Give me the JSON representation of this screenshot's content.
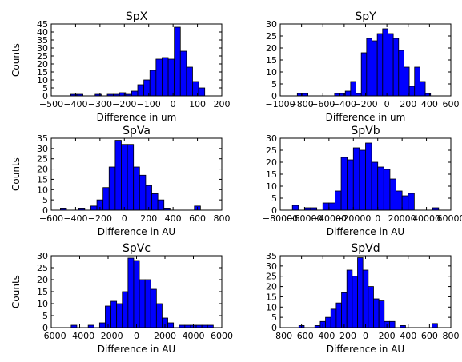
{
  "chart_data": [
    {
      "type": "bar",
      "title": "SpX",
      "xlabel": "Difference in um",
      "ylabel": "Counts",
      "xlim": [
        -500,
        200
      ],
      "ylim": [
        0,
        45
      ],
      "xticks": [
        -500,
        -400,
        -300,
        -200,
        -100,
        0,
        100,
        200
      ],
      "xtick_labels": [
        "−500",
        "−400",
        "−300",
        "−200",
        "−100",
        "0",
        "100",
        "200"
      ],
      "yticks": [
        0,
        5,
        10,
        15,
        20,
        25,
        30,
        35,
        40,
        45
      ],
      "ytick_labels": [
        "0",
        "5",
        "10",
        "15",
        "20",
        "25",
        "30",
        "35",
        "40",
        "45"
      ],
      "bin_edges": [
        -420,
        -395,
        -370,
        -345,
        -320,
        -295,
        -270,
        -245,
        -220,
        -195,
        -170,
        -145,
        -120,
        -95,
        -70,
        -45,
        -20,
        5,
        30,
        55,
        80,
        105,
        130,
        155,
        180
      ],
      "values": [
        1,
        1,
        0,
        0,
        1,
        0,
        1,
        1,
        2,
        1,
        3,
        7,
        10,
        16,
        23,
        24,
        23,
        43,
        28,
        18,
        9,
        5,
        0,
        0
      ]
    },
    {
      "type": "bar",
      "title": "SpY",
      "xlabel": "Difference in um",
      "ylabel": "",
      "xlim": [
        -1000,
        600
      ],
      "ylim": [
        0,
        30
      ],
      "xticks": [
        -1000,
        -800,
        -600,
        -400,
        -200,
        0,
        200,
        400,
        600
      ],
      "xtick_labels": [
        "−1000",
        "−800",
        "−600",
        "−400",
        "−200",
        "0",
        "200",
        "400",
        "600"
      ],
      "yticks": [
        0,
        5,
        10,
        15,
        20,
        25,
        30
      ],
      "ytick_labels": [
        "0",
        "5",
        "10",
        "15",
        "20",
        "25",
        "30"
      ],
      "bin_edges": [
        -840,
        -790,
        -740,
        -690,
        -640,
        -590,
        -540,
        -490,
        -440,
        -390,
        -340,
        -290,
        -240,
        -190,
        -140,
        -90,
        -40,
        10,
        60,
        110,
        160,
        210,
        260,
        310,
        360,
        410,
        460
      ],
      "values": [
        1,
        1,
        0,
        0,
        0,
        0,
        0,
        1,
        1,
        2,
        6,
        1,
        18,
        24,
        23,
        26,
        28,
        26,
        24,
        19,
        12,
        4,
        12,
        6,
        1,
        0
      ]
    },
    {
      "type": "bar",
      "title": "SpVa",
      "xlabel": "Difference in AU",
      "ylabel": "Counts",
      "xlim": [
        -600,
        800
      ],
      "ylim": [
        0,
        35
      ],
      "xticks": [
        -600,
        -400,
        -200,
        0,
        200,
        400,
        600,
        800
      ],
      "xtick_labels": [
        "−600",
        "−400",
        "−200",
        "0",
        "200",
        "400",
        "600",
        "800"
      ],
      "yticks": [
        0,
        5,
        10,
        15,
        20,
        25,
        30,
        35
      ],
      "ytick_labels": [
        "0",
        "5",
        "10",
        "15",
        "20",
        "25",
        "30",
        "35"
      ],
      "bin_edges": [
        -525,
        -475,
        -425,
        -375,
        -325,
        -275,
        -225,
        -175,
        -125,
        -75,
        -25,
        25,
        75,
        125,
        175,
        225,
        275,
        325,
        375,
        425,
        475,
        525,
        575,
        625,
        675
      ],
      "values": [
        1,
        0,
        0,
        1,
        0,
        2,
        5,
        11,
        21,
        34,
        32,
        32,
        21,
        17,
        12,
        8,
        5,
        1,
        0,
        0,
        0,
        0,
        2,
        0
      ]
    },
    {
      "type": "bar",
      "title": "SpVb",
      "xlabel": "Difference in AU",
      "ylabel": "",
      "xlim": [
        -80000,
        60000
      ],
      "ylim": [
        0,
        30
      ],
      "xticks": [
        -80000,
        -60000,
        -40000,
        -20000,
        0,
        20000,
        40000,
        60000
      ],
      "xtick_labels": [
        "−80000",
        "−60000",
        "−40000",
        "−20000",
        "0",
        "20000",
        "40000",
        "60000"
      ],
      "yticks": [
        0,
        5,
        10,
        15,
        20,
        25,
        30
      ],
      "ytick_labels": [
        "0",
        "5",
        "10",
        "15",
        "20",
        "25",
        "30"
      ],
      "bin_edges": [
        -70000,
        -65000,
        -60000,
        -55000,
        -50000,
        -45000,
        -40000,
        -35000,
        -30000,
        -25000,
        -20000,
        -15000,
        -10000,
        -5000,
        0,
        5000,
        10000,
        15000,
        20000,
        25000,
        30000,
        35000,
        40000,
        45000,
        50000,
        55000
      ],
      "values": [
        2,
        0,
        1,
        1,
        0,
        3,
        3,
        8,
        22,
        21,
        26,
        25,
        28,
        20,
        18,
        17,
        13,
        8,
        6,
        7,
        0,
        0,
        0,
        1,
        0
      ]
    },
    {
      "type": "bar",
      "title": "SpVc",
      "xlabel": "Difference in AU",
      "ylabel": "Counts",
      "xlim": [
        -6000,
        6000
      ],
      "ylim": [
        0,
        30
      ],
      "xticks": [
        -6000,
        -4000,
        -2000,
        0,
        2000,
        4000,
        6000
      ],
      "xtick_labels": [
        "−6000",
        "−4000",
        "−2000",
        "0",
        "2000",
        "4000",
        "6000"
      ],
      "yticks": [
        0,
        5,
        10,
        15,
        20,
        25,
        30
      ],
      "ytick_labels": [
        "0",
        "5",
        "10",
        "15",
        "20",
        "25",
        "30"
      ],
      "bin_edges": [
        -5000,
        -4600,
        -4200,
        -3800,
        -3400,
        -3000,
        -2600,
        -2200,
        -1800,
        -1400,
        -1000,
        -600,
        -200,
        200,
        600,
        1000,
        1400,
        1800,
        2200,
        2600,
        3000,
        3400,
        3800,
        4200,
        4600,
        5000,
        5400,
        5800
      ],
      "values": [
        0,
        1,
        0,
        0,
        1,
        0,
        2,
        9,
        11,
        10,
        15,
        29,
        28,
        20,
        20,
        16,
        10,
        4,
        2,
        0,
        1,
        1,
        1,
        1,
        1,
        1,
        0
      ]
    },
    {
      "type": "bar",
      "title": "SpVd",
      "xlabel": "Difference in AU",
      "ylabel": "",
      "xlim": [
        -800,
        800
      ],
      "ylim": [
        0,
        35
      ],
      "xticks": [
        -800,
        -600,
        -400,
        -200,
        0,
        200,
        400,
        600,
        800
      ],
      "xtick_labels": [
        "−800",
        "−600",
        "−400",
        "−200",
        "0",
        "200",
        "400",
        "600",
        "800"
      ],
      "yticks": [
        0,
        5,
        10,
        15,
        20,
        25,
        30,
        35
      ],
      "ytick_labels": [
        "0",
        "5",
        "10",
        "15",
        "20",
        "25",
        "30",
        "35"
      ],
      "bin_edges": [
        -625,
        -575,
        -525,
        -475,
        -425,
        -375,
        -325,
        -275,
        -225,
        -175,
        -125,
        -75,
        -25,
        25,
        75,
        125,
        175,
        225,
        275,
        325,
        375,
        425,
        475,
        525,
        575,
        625,
        675,
        725
      ],
      "values": [
        1,
        0,
        0,
        1,
        3,
        5,
        9,
        12,
        17,
        28,
        25,
        34,
        28,
        20,
        14,
        13,
        3,
        3,
        0,
        1,
        0,
        0,
        0,
        0,
        0,
        2,
        0
      ]
    }
  ]
}
